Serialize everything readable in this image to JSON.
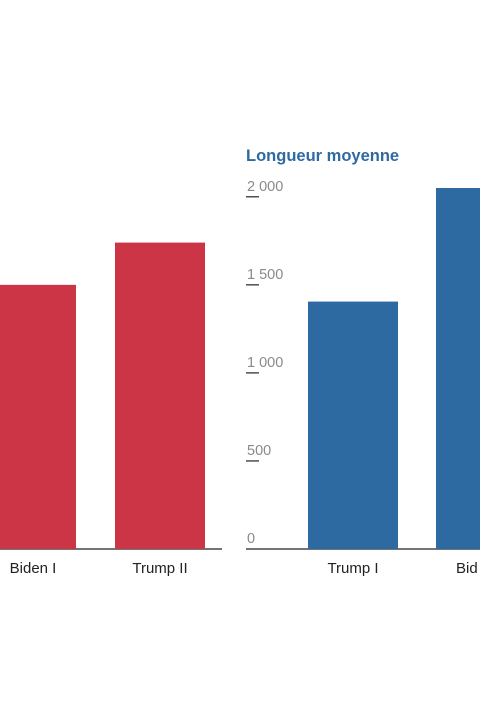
{
  "chart_data": [
    {
      "type": "bar",
      "title": "",
      "categories": [
        "Biden I",
        "Trump II"
      ],
      "values": [
        1500,
        1740
      ],
      "ylim": [
        0,
        2050
      ],
      "color": "#cc3545",
      "grid": false
    },
    {
      "type": "bar",
      "title": "Longueur moyenne",
      "categories": [
        "Trump I",
        "Bid"
      ],
      "values": [
        1405,
        2070
      ],
      "ylim": [
        0,
        2050
      ],
      "yticks": [
        0,
        500,
        1000,
        1500,
        2000
      ],
      "ytick_labels": [
        "0",
        "500",
        "1 000",
        "1 500",
        "2 000"
      ],
      "color": "#2e6aa2",
      "title_color": "#2e6aa2",
      "grid": false
    }
  ]
}
